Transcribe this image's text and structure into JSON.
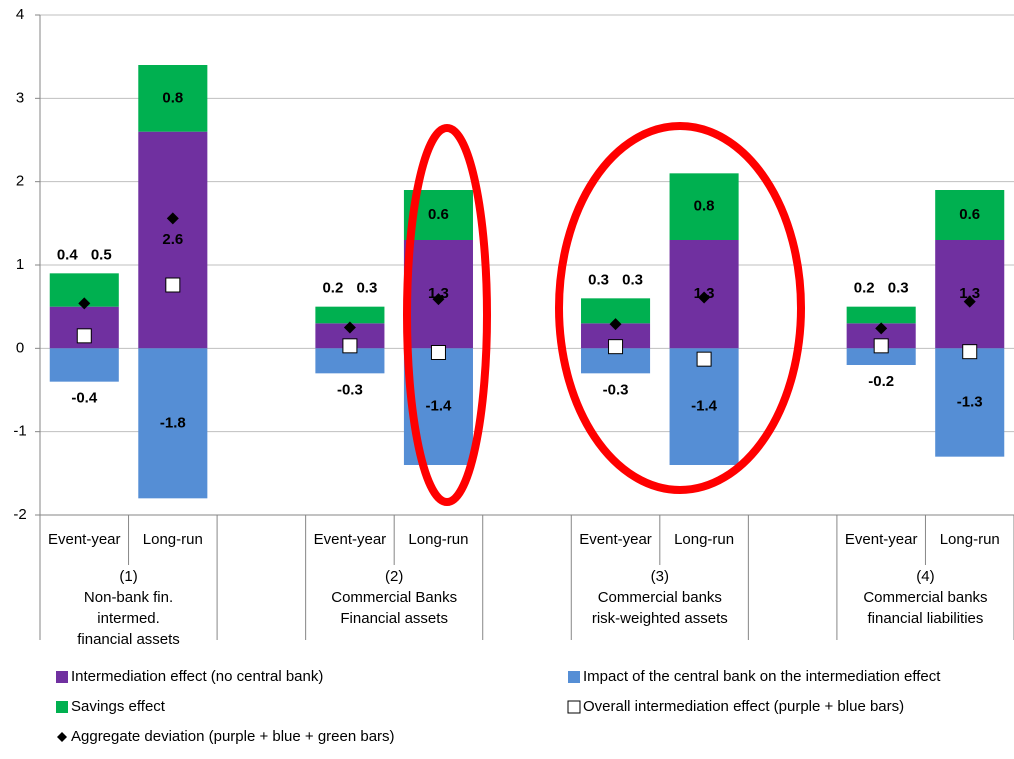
{
  "chart_data": {
    "type": "bar",
    "categories": [
      "Event-year",
      "Long-run",
      null,
      "Event-year",
      "Long-run",
      null,
      "Event-year",
      "Long-run",
      null,
      "Event-year",
      "Long-run"
    ],
    "groups": [
      [
        "(1)",
        "Non-bank fin.",
        "intermed.",
        "financial assets"
      ],
      [
        "(2)",
        "Commercial Banks",
        "Financial assets"
      ],
      [
        "(3)",
        "Commercial banks",
        "risk-weighted assets"
      ],
      [
        "(4)",
        "Commercial banks",
        "financial liabilities"
      ]
    ],
    "series": [
      {
        "name": "Intermediation effect (no central bank)",
        "color": "#7030a0",
        "values": [
          0.5,
          2.6,
          null,
          0.3,
          1.3,
          null,
          0.3,
          1.3,
          null,
          0.3,
          1.3
        ]
      },
      {
        "name": "Impact of the central bank on the intermediation effect",
        "color": "#558ed5",
        "values": [
          -0.4,
          -1.8,
          null,
          -0.3,
          -1.4,
          null,
          -0.3,
          -1.4,
          null,
          -0.2,
          -1.3
        ]
      },
      {
        "name": "Savings effect",
        "color": "#00b050",
        "values": [
          0.4,
          0.8,
          null,
          0.2,
          0.6,
          null,
          0.3,
          0.8,
          null,
          0.2,
          0.6
        ]
      },
      {
        "name": "Overall intermediation effect (purple + blue bars)",
        "color": "#ffffff",
        "marker": "square",
        "values": [
          0.15,
          0.76,
          null,
          0.03,
          -0.05,
          null,
          0.02,
          -0.13,
          null,
          0.03,
          -0.04
        ]
      },
      {
        "name": "Aggregate deviation (purple + blue + green bars)",
        "color": "#000000",
        "marker": "diamond",
        "values": [
          0.54,
          1.56,
          null,
          0.25,
          0.59,
          null,
          0.29,
          0.61,
          null,
          0.24,
          0.56
        ]
      }
    ],
    "ylim": [
      -2,
      4
    ],
    "yticks": [
      -2,
      -1,
      0,
      1,
      2,
      3,
      4
    ],
    "grid": true
  }
}
